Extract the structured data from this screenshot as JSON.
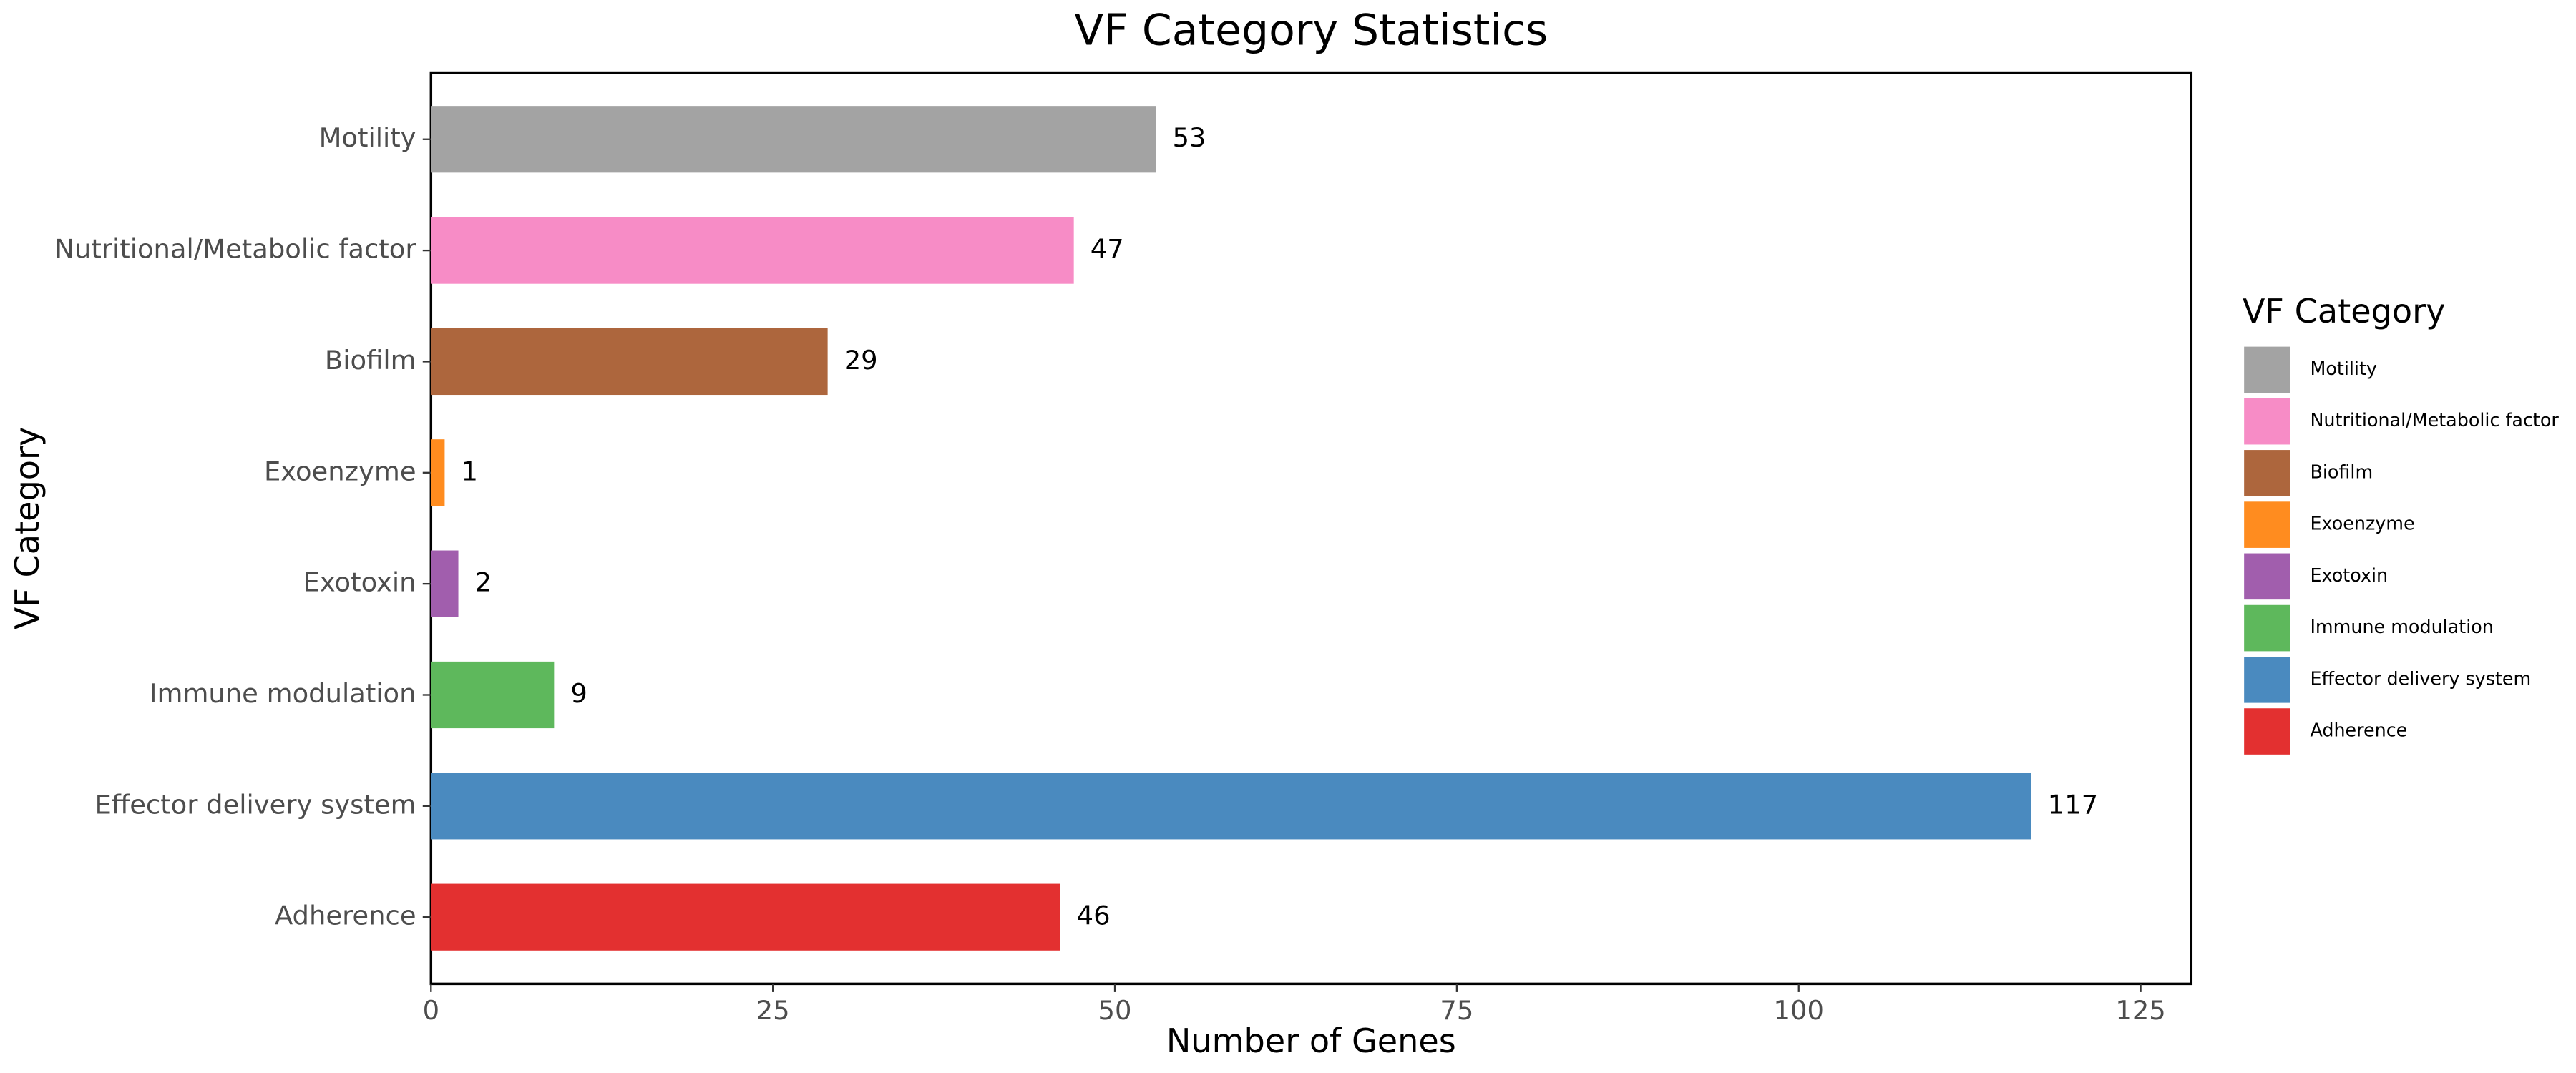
{
  "chart_data": {
    "type": "bar",
    "orientation": "horizontal",
    "title": "VF Category Statistics",
    "x_label": "Number of Genes",
    "y_label": "VF Category",
    "legend_title": "VF Category",
    "legend_position": "right",
    "categories": [
      "Motility",
      "Nutritional/Metabolic factor",
      "Biofilm",
      "Exoenzyme",
      "Exotoxin",
      "Immune modulation",
      "Effector delivery system",
      "Adherence"
    ],
    "values": [
      53,
      47,
      29,
      1,
      2,
      9,
      117,
      46
    ],
    "colors": [
      "#a3a3a3",
      "#f78cc6",
      "#ad663d",
      "#ff8c1f",
      "#a15ead",
      "#5eb85c",
      "#4a8abf",
      "#e33030"
    ],
    "xlim": [
      0,
      128.7
    ],
    "xticks": [
      0,
      25,
      50,
      75,
      100,
      125
    ],
    "grid": false
  }
}
